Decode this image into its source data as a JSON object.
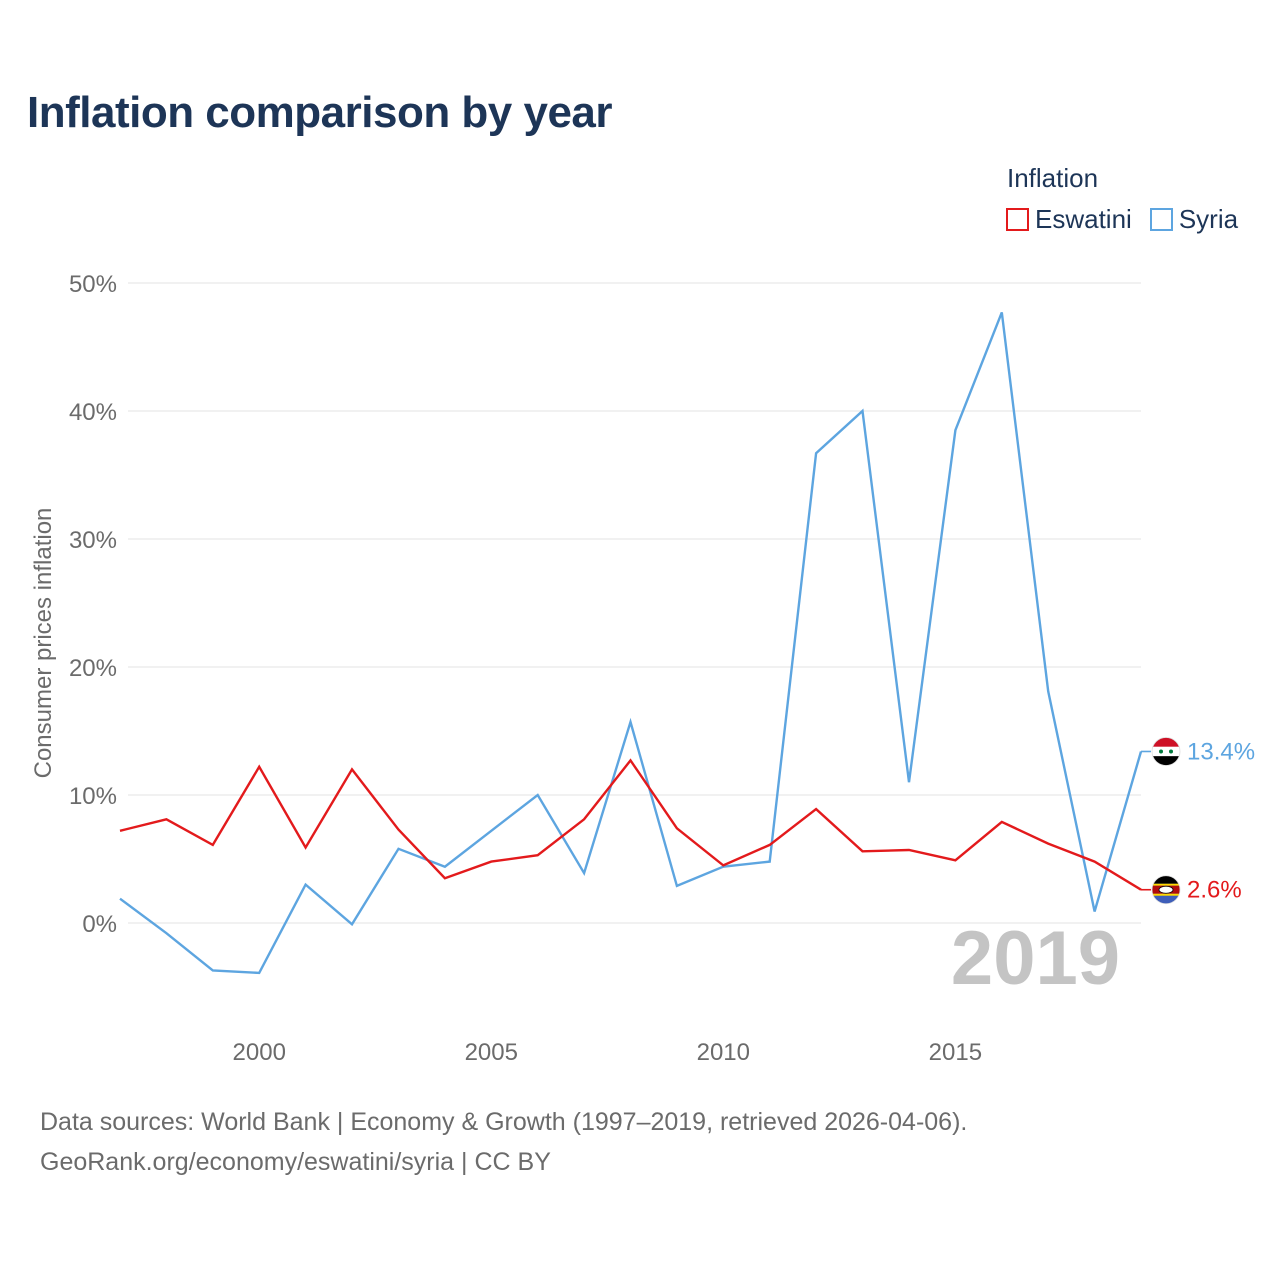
{
  "title": "Inflation comparison by year",
  "legend": {
    "title": "Inflation",
    "items": [
      {
        "label": "Eswatini",
        "color": "#e31a1c"
      },
      {
        "label": "Syria",
        "color": "#5da5e0"
      }
    ]
  },
  "footer": {
    "line1": "Data sources: World Bank | Economy & Growth (1997–2019, retrieved 2026-04-06).",
    "line2": "GeoRank.org/economy/eswatini/syria | CC BY"
  },
  "chart_data": {
    "type": "line",
    "ylabel": "Consumer prices inflation",
    "xlabel": "",
    "xlim": [
      1997,
      2019
    ],
    "ylim": [
      -7.2,
      51.5
    ],
    "yticks": [
      0,
      10,
      20,
      30,
      40,
      50
    ],
    "ytick_labels": [
      "0%",
      "10%",
      "20%",
      "30%",
      "40%",
      "50%"
    ],
    "xticks": [
      2000,
      2005,
      2010,
      2015
    ],
    "xtick_labels": [
      "2000",
      "2005",
      "2010",
      "2015"
    ],
    "year_watermark": "2019",
    "x": [
      1997,
      1998,
      1999,
      2000,
      2001,
      2002,
      2003,
      2004,
      2005,
      2006,
      2007,
      2008,
      2009,
      2010,
      2011,
      2012,
      2013,
      2014,
      2015,
      2016,
      2017,
      2018,
      2019
    ],
    "series": [
      {
        "name": "Eswatini",
        "color": "#e31a1c",
        "end_label": "2.6%",
        "values": [
          7.2,
          8.1,
          6.1,
          12.2,
          5.9,
          12.0,
          7.3,
          3.5,
          4.8,
          5.3,
          8.1,
          12.7,
          7.4,
          4.5,
          6.1,
          8.9,
          5.6,
          5.7,
          4.9,
          7.9,
          6.2,
          4.8,
          2.6
        ]
      },
      {
        "name": "Syria",
        "color": "#5da5e0",
        "end_label": "13.4%",
        "values": [
          1.9,
          -0.8,
          -3.7,
          -3.9,
          3.0,
          -0.1,
          5.8,
          4.4,
          7.2,
          10.0,
          3.9,
          15.7,
          2.9,
          4.4,
          4.8,
          36.7,
          40.0,
          11.0,
          38.5,
          47.7,
          18.1,
          0.9,
          13.4
        ]
      }
    ]
  }
}
